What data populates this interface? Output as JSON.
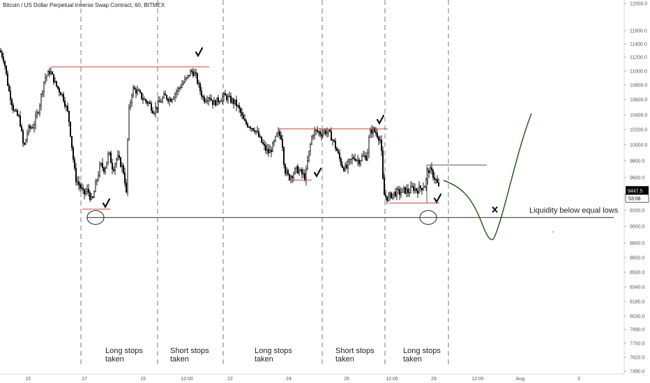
{
  "chart_data": {
    "type": "candlestick",
    "title": "Bitcoin / US Dollar Perpetual Inverse Swap Contract, 60, BITMEX",
    "y_ticks": [
      12000,
      11600,
      11400,
      11200,
      11000,
      10800,
      10600,
      10400,
      10200,
      10000,
      9800,
      9600,
      9400,
      9200,
      9000,
      8800,
      8650,
      8500,
      8340,
      8180,
      8030,
      7890,
      7750,
      7620,
      7490
    ],
    "y_tick_labels": [
      "12000.0",
      "11600.0",
      "11400.0",
      "11200.0",
      "11000.0",
      "10800.0",
      "10600.0",
      "10400.0",
      "10200.0",
      "10000.0",
      "9800.0",
      "9600.0",
      "9400.0",
      "9200.0",
      "9000.0",
      "8800.0",
      "8650.0",
      "8500.0",
      "8340.0",
      "8180.0",
      "8030.0",
      "7890.0",
      "7750.0",
      "7620.0",
      "7490.0"
    ],
    "x_tick_labels": [
      "15",
      "17",
      "19",
      "12:00",
      "22",
      "24",
      "26",
      "12:00",
      "29",
      "12:00",
      "Aug",
      "3"
    ],
    "price_label": "9447.5",
    "time_label": "53:08",
    "price_color": "#000000",
    "liquidity_level": 9110,
    "liquidity_label": "Liquidity below equal lows",
    "resistance_levels": [
      {
        "x_start": 73,
        "x_end": 300,
        "price": 11060
      },
      {
        "x_start": 400,
        "x_end": 556,
        "price": 10210
      },
      {
        "x_start": 413,
        "x_end": 447,
        "price": 9570
      },
      {
        "x_start": 118,
        "x_end": 158,
        "price": 9215
      },
      {
        "x_start": 558,
        "x_end": 630,
        "price": 9290
      }
    ],
    "resistance_color": "#e03a3a",
    "grey_level": {
      "x_start": 612,
      "x_end": 698,
      "price": 9750
    },
    "zones": [
      {
        "label_line1": "Long stops",
        "label_line2": "taken"
      },
      {
        "label_line1": "Short stops",
        "label_line2": "taken"
      },
      {
        "label_line1": "Long stops",
        "label_line2": "taken"
      },
      {
        "label_line1": "Short stops",
        "label_line2": "taken"
      },
      {
        "label_line1": "Long stops",
        "label_line2": "taken"
      }
    ],
    "projection_color": "#2f5a1e",
    "projection_marker": "x",
    "check_marks": 6
  }
}
